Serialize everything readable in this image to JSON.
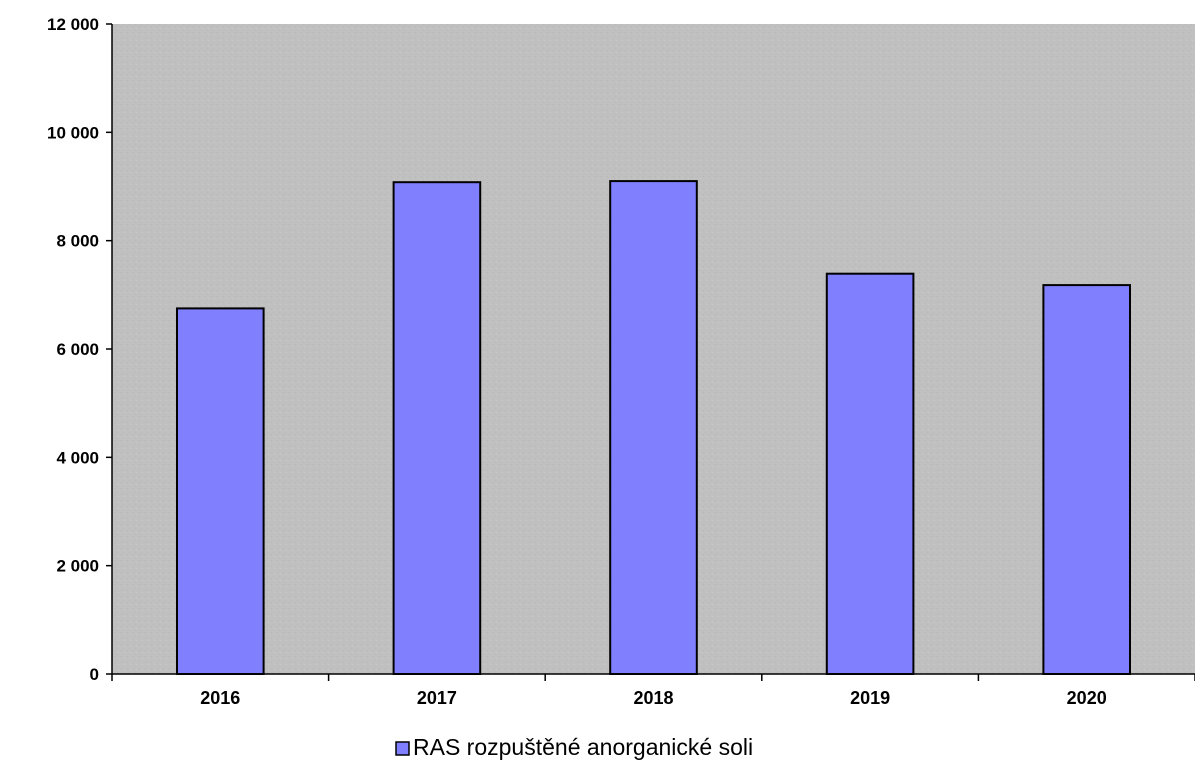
{
  "chart_data": {
    "type": "bar",
    "categories": [
      "2016",
      "2017",
      "2018",
      "2019",
      "2020"
    ],
    "series": [
      {
        "name": "RAS rozpuštěné anorganické soli",
        "values": [
          6750,
          9080,
          9100,
          7390,
          7180
        ],
        "color": "#8080ff"
      }
    ],
    "ylim": [
      0,
      12000
    ],
    "yticks": [
      0,
      2000,
      4000,
      6000,
      8000,
      10000,
      12000
    ],
    "ytick_labels": [
      "0",
      "2 000",
      "4 000",
      "6 000",
      "8 000",
      "10 000",
      "12 000"
    ],
    "grid": false,
    "legend_position": "bottom-center",
    "plot_background": "#c0c0c0",
    "bar_outline": "#000000"
  }
}
